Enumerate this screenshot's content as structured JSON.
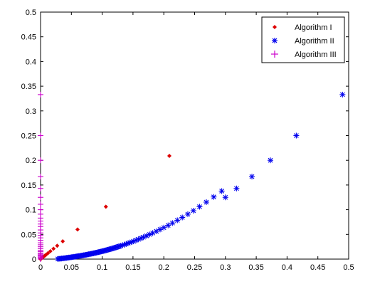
{
  "chart_data": {
    "type": "scatter",
    "title": "",
    "xlabel": "",
    "ylabel": "",
    "xlim": [
      0,
      0.5
    ],
    "ylim": [
      0,
      0.5
    ],
    "xticks": [
      0,
      0.05,
      0.1,
      0.15,
      0.2,
      0.25,
      0.3,
      0.35,
      0.4,
      0.45,
      0.5
    ],
    "yticks": [
      0,
      0.05,
      0.1,
      0.15,
      0.2,
      0.25,
      0.3,
      0.35,
      0.4,
      0.45,
      0.5
    ],
    "xtick_labels": [
      "0",
      "0.05",
      "0.1",
      "0.15",
      "0.2",
      "0.25",
      "0.3",
      "0.35",
      "0.4",
      "0.45",
      "0.5"
    ],
    "ytick_labels": [
      "0",
      "0.05",
      "0.1",
      "0.15",
      "0.2",
      "0.25",
      "0.3",
      "0.35",
      "0.4",
      "0.45",
      "0.5"
    ],
    "grid": false,
    "legend_position": "top-right",
    "series": [
      {
        "name": "Algorithm I",
        "marker": "diamond",
        "color": "#dd0000",
        "points": [
          [
            0.0,
            0.0
          ],
          [
            0.001,
            0.001
          ],
          [
            0.002,
            0.002
          ],
          [
            0.003,
            0.003
          ],
          [
            0.004,
            0.004
          ],
          [
            0.005,
            0.005
          ],
          [
            0.007,
            0.007
          ],
          [
            0.009,
            0.009
          ],
          [
            0.012,
            0.012
          ],
          [
            0.016,
            0.016
          ],
          [
            0.021,
            0.021
          ],
          [
            0.027,
            0.027
          ],
          [
            0.036,
            0.036
          ],
          [
            0.06,
            0.06
          ],
          [
            0.106,
            0.106
          ],
          [
            0.209,
            0.209
          ]
        ]
      },
      {
        "name": "Algorithm II",
        "marker": "asterisk",
        "color": "#0000ee",
        "points": [
          [
            0.028,
            0.0003
          ],
          [
            0.03,
            0.0006
          ],
          [
            0.032,
            0.0009
          ],
          [
            0.034,
            0.0012
          ],
          [
            0.036,
            0.0015
          ],
          [
            0.038,
            0.0018
          ],
          [
            0.04,
            0.0021
          ],
          [
            0.042,
            0.0025
          ],
          [
            0.044,
            0.0028
          ],
          [
            0.046,
            0.0032
          ],
          [
            0.048,
            0.0035
          ],
          [
            0.05,
            0.0039
          ],
          [
            0.052,
            0.0042
          ],
          [
            0.054,
            0.0046
          ],
          [
            0.056,
            0.005
          ],
          [
            0.058,
            0.0054
          ],
          [
            0.06,
            0.0058
          ],
          [
            0.062,
            0.0062
          ],
          [
            0.064,
            0.0066
          ],
          [
            0.066,
            0.007
          ],
          [
            0.068,
            0.0074
          ],
          [
            0.07,
            0.0079
          ],
          [
            0.072,
            0.0083
          ],
          [
            0.074,
            0.0088
          ],
          [
            0.076,
            0.0093
          ],
          [
            0.078,
            0.0098
          ],
          [
            0.08,
            0.0103
          ],
          [
            0.082,
            0.0108
          ],
          [
            0.084,
            0.0113
          ],
          [
            0.086,
            0.0118
          ],
          [
            0.088,
            0.0124
          ],
          [
            0.09,
            0.0129
          ],
          [
            0.092,
            0.0135
          ],
          [
            0.094,
            0.0141
          ],
          [
            0.096,
            0.0147
          ],
          [
            0.098,
            0.0153
          ],
          [
            0.1,
            0.0159
          ],
          [
            0.102,
            0.0165
          ],
          [
            0.104,
            0.0172
          ],
          [
            0.106,
            0.0178
          ],
          [
            0.108,
            0.0185
          ],
          [
            0.11,
            0.0192
          ],
          [
            0.112,
            0.0199
          ],
          [
            0.114,
            0.0206
          ],
          [
            0.116,
            0.0213
          ],
          [
            0.118,
            0.0221
          ],
          [
            0.12,
            0.0228
          ],
          [
            0.122,
            0.0236
          ],
          [
            0.124,
            0.0244
          ],
          [
            0.126,
            0.0252
          ],
          [
            0.128,
            0.026
          ],
          [
            0.13,
            0.0268
          ],
          [
            0.133,
            0.0281
          ],
          [
            0.136,
            0.0293
          ],
          [
            0.139,
            0.0307
          ],
          [
            0.142,
            0.032
          ],
          [
            0.145,
            0.0334
          ],
          [
            0.148,
            0.0348
          ],
          [
            0.151,
            0.0362
          ],
          [
            0.155,
            0.0382
          ],
          [
            0.159,
            0.0402
          ],
          [
            0.163,
            0.0423
          ],
          [
            0.167,
            0.0444
          ],
          [
            0.172,
            0.0471
          ],
          [
            0.177,
            0.0499
          ],
          [
            0.182,
            0.0528
          ],
          [
            0.188,
            0.0563
          ],
          [
            0.194,
            0.06
          ],
          [
            0.2,
            0.0638
          ],
          [
            0.207,
            0.0683
          ],
          [
            0.214,
            0.073
          ],
          [
            0.222,
            0.0786
          ],
          [
            0.23,
            0.0843
          ],
          [
            0.239,
            0.091
          ],
          [
            0.248,
            0.098
          ],
          [
            0.258,
            0.106
          ],
          [
            0.269,
            0.1153
          ],
          [
            0.281,
            0.1258
          ],
          [
            0.294,
            0.1377
          ],
          [
            0.3,
            0.125
          ],
          [
            0.318,
            0.143
          ],
          [
            0.343,
            0.167
          ],
          [
            0.373,
            0.2
          ],
          [
            0.415,
            0.25
          ],
          [
            0.49,
            0.333
          ]
        ]
      },
      {
        "name": "Algorithm III",
        "marker": "plus",
        "color": "#cc00cc",
        "points": [
          [
            0.0,
            0.0
          ],
          [
            0.0,
            0.002
          ],
          [
            0.0,
            0.004
          ],
          [
            0.0,
            0.006
          ],
          [
            0.0,
            0.008
          ],
          [
            0.0,
            0.01
          ],
          [
            0.0,
            0.012
          ],
          [
            0.0,
            0.015
          ],
          [
            0.0,
            0.018
          ],
          [
            0.0,
            0.021
          ],
          [
            0.0,
            0.025
          ],
          [
            0.0,
            0.029
          ],
          [
            0.0,
            0.033
          ],
          [
            0.0,
            0.038
          ],
          [
            0.0,
            0.043
          ],
          [
            0.0,
            0.048
          ],
          [
            0.0,
            0.053
          ],
          [
            0.0,
            0.059
          ],
          [
            0.0,
            0.066
          ],
          [
            0.0,
            0.071
          ],
          [
            0.0,
            0.077
          ],
          [
            0.0,
            0.083
          ],
          [
            0.0,
            0.091
          ],
          [
            0.0,
            0.1
          ],
          [
            0.0,
            0.111
          ],
          [
            0.0,
            0.125
          ],
          [
            0.0,
            0.143
          ],
          [
            0.0,
            0.167
          ],
          [
            0.0,
            0.2
          ],
          [
            0.0,
            0.25
          ],
          [
            0.0,
            0.333
          ]
        ]
      }
    ]
  }
}
